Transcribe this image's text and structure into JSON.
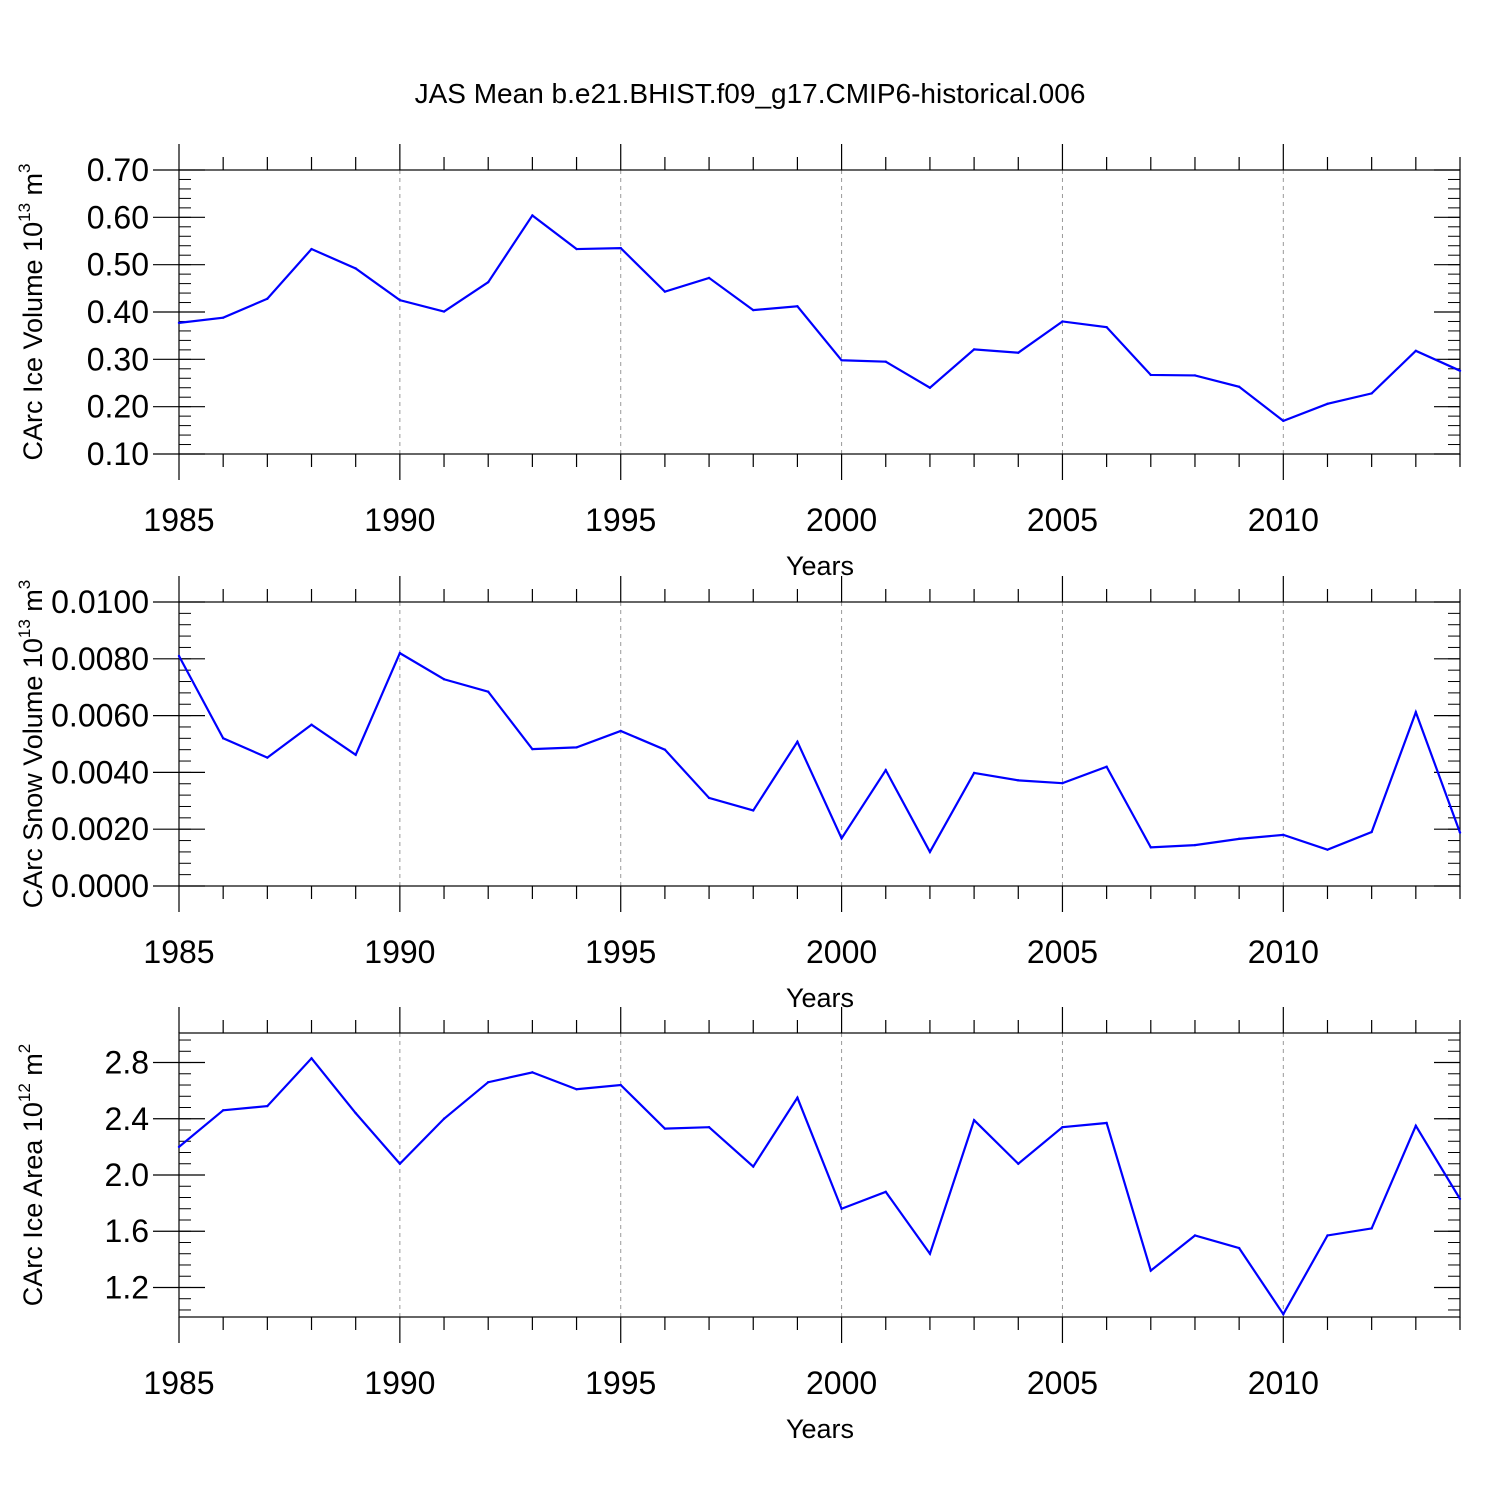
{
  "title": "JAS Mean b.e21.BHIST.f09_g17.CMIP6-historical.006",
  "colors": {
    "line": "#0000ff",
    "axis": "#000000",
    "grid": "#999999"
  },
  "chart_data": [
    {
      "type": "line",
      "name": "ice-volume",
      "ylabel": "CArc Ice Volume 10",
      "ylabel_exp": "13",
      "ylabel_unit": " m",
      "ylabel_unit_exp": "3",
      "xlabel": "Years",
      "xlim": [
        1985,
        2014
      ],
      "ylim": [
        0.1,
        0.7
      ],
      "yticks": [
        0.1,
        0.2,
        0.3,
        0.4,
        0.5,
        0.6,
        0.7
      ],
      "ytick_labels": [
        "0.10",
        "0.20",
        "0.30",
        "0.40",
        "0.50",
        "0.60",
        "0.70"
      ],
      "yminor_step": 0.02,
      "xticks": [
        1985,
        1990,
        1995,
        2000,
        2005,
        2010
      ],
      "xtick_labels": [
        "1985",
        "1990",
        "1995",
        "2000",
        "2005",
        "2010"
      ],
      "x": [
        1985,
        1986,
        1987,
        1988,
        1989,
        1990,
        1991,
        1992,
        1993,
        1994,
        1995,
        1996,
        1997,
        1998,
        1999,
        2000,
        2001,
        2002,
        2003,
        2004,
        2005,
        2006,
        2007,
        2008,
        2009,
        2010,
        2011,
        2012,
        2013,
        2014
      ],
      "values": [
        0.377,
        0.388,
        0.428,
        0.533,
        0.492,
        0.425,
        0.401,
        0.463,
        0.604,
        0.533,
        0.535,
        0.443,
        0.472,
        0.404,
        0.412,
        0.298,
        0.295,
        0.24,
        0.321,
        0.314,
        0.38,
        0.368,
        0.267,
        0.266,
        0.242,
        0.17,
        0.206,
        0.228,
        0.318,
        0.276
      ]
    },
    {
      "type": "line",
      "name": "snow-volume",
      "ylabel": "CArc Snow Volume 10",
      "ylabel_exp": "13",
      "ylabel_unit": " m",
      "ylabel_unit_exp": "3",
      "xlabel": "Years",
      "xlim": [
        1985,
        2014
      ],
      "ylim": [
        0.0,
        0.01
      ],
      "yticks": [
        0.0,
        0.002,
        0.004,
        0.006,
        0.008,
        0.01
      ],
      "ytick_labels": [
        "0.0000",
        "0.0020",
        "0.0040",
        "0.0060",
        "0.0080",
        "0.0100"
      ],
      "yminor_step": 0.0004,
      "xticks": [
        1985,
        1990,
        1995,
        2000,
        2005,
        2010
      ],
      "xtick_labels": [
        "1985",
        "1990",
        "1995",
        "2000",
        "2005",
        "2010"
      ],
      "x": [
        1985,
        1986,
        1987,
        1988,
        1989,
        1990,
        1991,
        1992,
        1993,
        1994,
        1995,
        1996,
        1997,
        1998,
        1999,
        2000,
        2001,
        2002,
        2003,
        2004,
        2005,
        2006,
        2007,
        2008,
        2009,
        2010,
        2011,
        2012,
        2013,
        2014
      ],
      "values": [
        0.0081,
        0.0052,
        0.00452,
        0.00568,
        0.00462,
        0.0082,
        0.00728,
        0.00684,
        0.00482,
        0.00488,
        0.00546,
        0.0048,
        0.0031,
        0.00266,
        0.00508,
        0.00168,
        0.00408,
        0.0012,
        0.00398,
        0.00372,
        0.00362,
        0.0042,
        0.00136,
        0.00144,
        0.00166,
        0.0018,
        0.00128,
        0.0019,
        0.00612,
        0.00188
      ]
    },
    {
      "type": "line",
      "name": "ice-area",
      "ylabel": "CArc Ice Area 10",
      "ylabel_exp": "12",
      "ylabel_unit": " m",
      "ylabel_unit_exp": "2",
      "xlabel": "Years",
      "xlim": [
        1985,
        2014
      ],
      "ylim": [
        0.99,
        3.01
      ],
      "yticks": [
        1.2,
        1.6,
        2.0,
        2.4,
        2.8
      ],
      "ytick_labels": [
        "1.2",
        "1.6",
        "2.0",
        "2.4",
        "2.8"
      ],
      "yminor_step": 0.08,
      "xticks": [
        1985,
        1990,
        1995,
        2000,
        2005,
        2010
      ],
      "xtick_labels": [
        "1985",
        "1990",
        "1995",
        "2000",
        "2005",
        "2010"
      ],
      "x": [
        1985,
        1986,
        1987,
        1988,
        1989,
        1990,
        1991,
        1992,
        1993,
        1994,
        1995,
        1996,
        1997,
        1998,
        1999,
        2000,
        2001,
        2002,
        2003,
        2004,
        2005,
        2006,
        2007,
        2008,
        2009,
        2010,
        2011,
        2012,
        2013,
        2014
      ],
      "values": [
        2.2,
        2.46,
        2.49,
        2.83,
        2.44,
        2.08,
        2.4,
        2.66,
        2.73,
        2.61,
        2.64,
        2.33,
        2.34,
        2.06,
        2.55,
        1.76,
        1.88,
        1.44,
        2.39,
        2.08,
        2.34,
        2.37,
        1.32,
        1.57,
        1.48,
        1.01,
        1.57,
        1.62,
        2.35,
        1.83
      ]
    }
  ]
}
